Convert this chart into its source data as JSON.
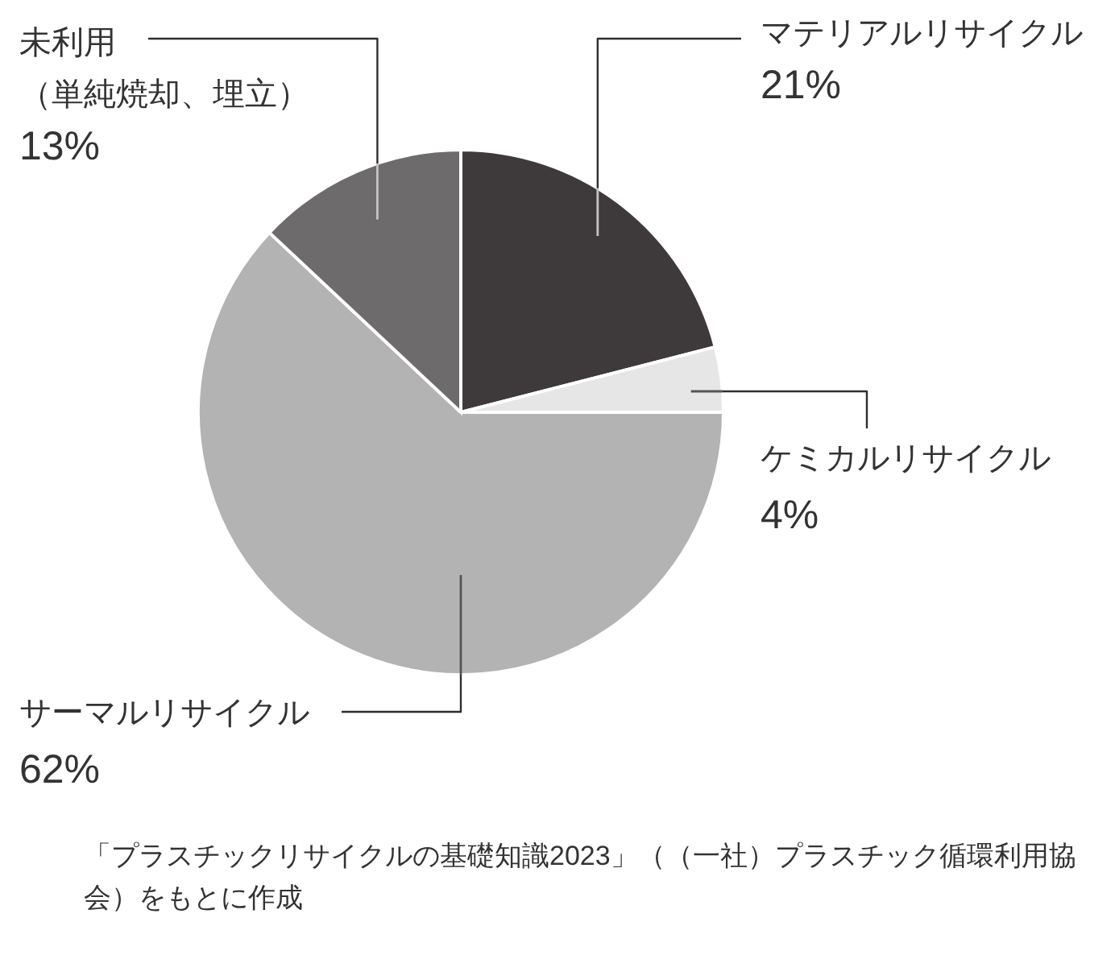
{
  "chart_data": {
    "type": "pie",
    "categories": [
      "マテリアルリサイクル",
      "ケミカルリサイクル",
      "サーマルリサイクル",
      "未利用（単純焼却、埋立）"
    ],
    "values": [
      21,
      4,
      62,
      13
    ],
    "colors": [
      "#3e3a3b",
      "#e6e6e6",
      "#b3b3b3",
      "#6e6b6c"
    ],
    "value_labels": [
      "21%",
      "4%",
      "62%",
      "13%"
    ],
    "annotations": [
      "「プラスチックリサイクルの基礎知識2023」（（一社）プラスチック循環利用協会）をもとに作成"
    ]
  }
}
